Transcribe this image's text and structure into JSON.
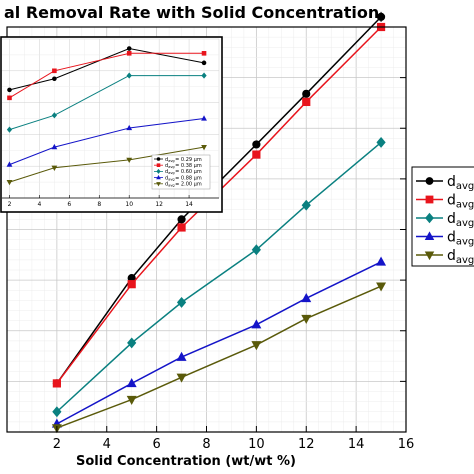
{
  "chart_data": [
    {
      "type": "line",
      "title": "al Removal Rate with Solid Concentration",
      "xlabel": "Solid Concentration (wt/wt %)",
      "ylabel": "",
      "xlim": [
        0,
        16
      ],
      "ylim": [
        0,
        100
      ],
      "xticks": [
        2,
        4,
        6,
        8,
        10,
        12,
        14,
        16
      ],
      "grid": true,
      "legend_position": "right",
      "series": [
        {
          "name": "d",
          "sub": "avg",
          "marker": "circle",
          "color": "#000000",
          "x": [
            2,
            5,
            7,
            10,
            12,
            15
          ],
          "y": [
            12.0,
            38.0,
            52.5,
            71.0,
            83.5,
            102.5
          ]
        },
        {
          "name": "d",
          "sub": "avg",
          "marker": "square",
          "color": "#e8141c",
          "x": [
            2,
            5,
            7,
            10,
            12,
            15
          ],
          "y": [
            12.0,
            36.5,
            50.5,
            68.5,
            81.5,
            100.0
          ]
        },
        {
          "name": "d",
          "sub": "avg",
          "marker": "diamond",
          "color": "#0a8080",
          "x": [
            2,
            5,
            7,
            10,
            12,
            15
          ],
          "y": [
            5.0,
            22.0,
            32.0,
            45.0,
            56.0,
            71.5
          ]
        },
        {
          "name": "d",
          "sub": "avg",
          "marker": "triangle-up",
          "color": "#1414c8",
          "x": [
            2,
            5,
            7,
            10,
            12,
            15
          ],
          "y": [
            2.0,
            12.0,
            18.5,
            26.5,
            33.0,
            42.0
          ]
        },
        {
          "name": "d",
          "sub": "avg",
          "marker": "triangle-down",
          "color": "#5a5a0a",
          "x": [
            2,
            5,
            7,
            10,
            12,
            15
          ],
          "y": [
            1.0,
            8.0,
            13.5,
            21.5,
            28.0,
            36.0
          ]
        }
      ]
    },
    {
      "type": "line",
      "title": "",
      "xlim": [
        1.5,
        16
      ],
      "ylim": [
        0,
        100
      ],
      "xticks": [
        2,
        4,
        6,
        8,
        10,
        12,
        14
      ],
      "grid": true,
      "legend_position": "bottom-right",
      "series": [
        {
          "label": "d",
          "sub": "avg",
          "value": "= 0.29 µm",
          "marker": "circle",
          "color": "#000000",
          "x": [
            2,
            5,
            10,
            15
          ],
          "y": [
            68,
            75,
            94,
            85
          ]
        },
        {
          "label": "d",
          "sub": "avg",
          "value": "= 0.38 µm",
          "marker": "square",
          "color": "#e8141c",
          "x": [
            2,
            5,
            10,
            15
          ],
          "y": [
            63,
            80,
            91,
            91
          ]
        },
        {
          "label": "d",
          "sub": "avg",
          "value": "= 0.60 µm",
          "marker": "diamond",
          "color": "#0a8080",
          "x": [
            2,
            5,
            10,
            15
          ],
          "y": [
            43,
            52,
            77,
            77
          ]
        },
        {
          "label": "d",
          "sub": "avg",
          "value": "= 0.88 µm",
          "marker": "triangle-up",
          "color": "#1414c8",
          "x": [
            2,
            5,
            10,
            15
          ],
          "y": [
            21,
            32,
            44,
            50
          ]
        },
        {
          "label": "d",
          "sub": "avg",
          "value": "= 2.00 µm",
          "marker": "triangle-down",
          "color": "#5a5a0a",
          "x": [
            2,
            5,
            10,
            15
          ],
          "y": [
            10,
            19,
            24,
            32
          ]
        }
      ]
    }
  ]
}
